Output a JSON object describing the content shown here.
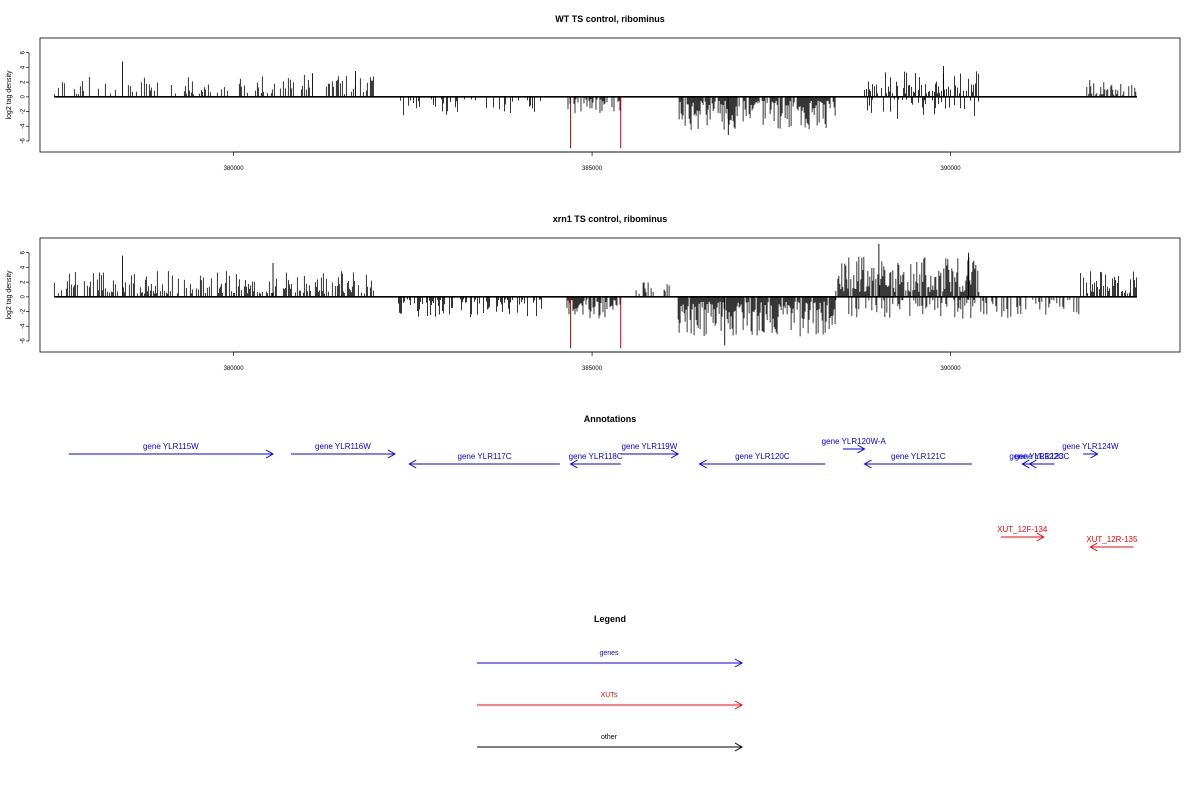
{
  "colors": {
    "gene": "#0000ff",
    "xut": "#ff0000",
    "other": "#000000",
    "signal": "#000000",
    "highlight": "#cc0000"
  },
  "chart_data": [
    {
      "type": "bar",
      "title": "WT TS control, ribominus",
      "xlabel": "",
      "ylabel": "log2 tag density",
      "xlim": [
        377300,
        393200
      ],
      "ylim": [
        -7.5,
        8
      ],
      "yticks": [
        -6,
        -4,
        -2,
        0,
        2,
        4,
        6
      ],
      "xticks": [
        380000,
        385000,
        390000
      ],
      "xtick_labels": [
        "380000",
        "385000",
        "390000"
      ],
      "baseline_range": [
        377500,
        392600
      ],
      "grid": false,
      "highlight_bars": [
        {
          "x": 384700,
          "y": -7
        },
        {
          "x": 385400,
          "y": -7
        }
      ],
      "profile": {
        "blocks": [
          {
            "from": 377500,
            "to": 381950,
            "sign": 1,
            "max": 3.0,
            "density": 0.32
          },
          {
            "from": 382300,
            "to": 384300,
            "sign": -1,
            "max": 2.5,
            "density": 0.3
          },
          {
            "from": 384650,
            "to": 385400,
            "sign": -1,
            "max": 2.4,
            "density": 0.6
          },
          {
            "from": 386200,
            "to": 388400,
            "sign": -1,
            "max": 4.5,
            "density": 0.85
          },
          {
            "from": 388800,
            "to": 390400,
            "sign": 1,
            "max": 3.5,
            "density": 0.45
          },
          {
            "from": 388800,
            "to": 390400,
            "sign": -1,
            "max": 3.0,
            "density": 0.3
          },
          {
            "from": 391900,
            "to": 392600,
            "sign": 1,
            "max": 2.4,
            "density": 0.5
          }
        ],
        "peaks": [
          {
            "x": 378450,
            "y": 4.8
          },
          {
            "x": 381100,
            "y": 3.2
          },
          {
            "x": 381700,
            "y": 3.5
          },
          {
            "x": 389900,
            "y": 4.2
          },
          {
            "x": 386900,
            "y": -5.2
          }
        ]
      }
    },
    {
      "type": "bar",
      "title": "xrn1 TS control, ribominus",
      "xlabel": "",
      "ylabel": "log2 tag density",
      "xlim": [
        377300,
        393200
      ],
      "ylim": [
        -7.5,
        8
      ],
      "yticks": [
        -6,
        -4,
        -2,
        0,
        2,
        4,
        6
      ],
      "xticks": [
        380000,
        385000,
        390000
      ],
      "xtick_labels": [
        "380000",
        "385000",
        "390000"
      ],
      "baseline_range": [
        377500,
        392600
      ],
      "grid": false,
      "highlight_bars": [
        {
          "x": 384700,
          "y": -7
        },
        {
          "x": 385400,
          "y": -7
        }
      ],
      "profile": {
        "blocks": [
          {
            "from": 377500,
            "to": 381950,
            "sign": 1,
            "max": 3.5,
            "density": 0.55
          },
          {
            "from": 382300,
            "to": 384300,
            "sign": -1,
            "max": 2.8,
            "density": 0.45
          },
          {
            "from": 384650,
            "to": 385400,
            "sign": -1,
            "max": 3.0,
            "density": 0.75
          },
          {
            "from": 385600,
            "to": 386100,
            "sign": 1,
            "max": 2.0,
            "density": 0.4
          },
          {
            "from": 386200,
            "to": 388400,
            "sign": -1,
            "max": 5.5,
            "density": 0.95
          },
          {
            "from": 388400,
            "to": 390400,
            "sign": 1,
            "max": 5.5,
            "density": 0.9
          },
          {
            "from": 388400,
            "to": 391800,
            "sign": -1,
            "max": 3.0,
            "density": 0.4
          },
          {
            "from": 391800,
            "to": 392600,
            "sign": 1,
            "max": 3.5,
            "density": 0.7
          }
        ],
        "peaks": [
          {
            "x": 378450,
            "y": 5.6
          },
          {
            "x": 380550,
            "y": 4.6
          },
          {
            "x": 389000,
            "y": 7.2
          },
          {
            "x": 390250,
            "y": 6.0
          },
          {
            "x": 386850,
            "y": -6.6
          }
        ]
      }
    }
  ],
  "annotations": {
    "title": "Annotations",
    "features": [
      {
        "label": "gene YLR115W",
        "type": "gene",
        "start": 377700,
        "end": 380550,
        "strand": "+",
        "row": 0
      },
      {
        "label": "gene YLR116W",
        "type": "gene",
        "start": 380800,
        "end": 382250,
        "strand": "+",
        "row": 0
      },
      {
        "label": "gene YLR117C",
        "type": "gene",
        "start": 382450,
        "end": 384550,
        "strand": "-",
        "row": 1
      },
      {
        "label": "gene YLR118C",
        "type": "gene",
        "start": 384700,
        "end": 385400,
        "strand": "-",
        "row": 1
      },
      {
        "label": "gene YLR119W",
        "type": "gene",
        "start": 385400,
        "end": 386200,
        "strand": "+",
        "row": 0
      },
      {
        "label": "gene YLR120C",
        "type": "gene",
        "start": 386500,
        "end": 388250,
        "strand": "-",
        "row": 1
      },
      {
        "label": "gene YLR120W-A",
        "type": "gene",
        "start": 388500,
        "end": 388800,
        "strand": "+",
        "row": -1
      },
      {
        "label": "gene YLR121C",
        "type": "gene",
        "start": 388800,
        "end": 390300,
        "strand": "-",
        "row": 1
      },
      {
        "label": "gene YLR122C",
        "type": "gene",
        "start": 391000,
        "end": 391400,
        "strand": "-",
        "row": 1
      },
      {
        "label": "gene YLR123C",
        "type": "gene",
        "start": 391100,
        "end": 391450,
        "strand": "-",
        "row": 1
      },
      {
        "label": "gene YLR124W",
        "type": "gene",
        "start": 391850,
        "end": 392050,
        "strand": "+",
        "row": 0
      },
      {
        "label": "XUT_12F-134",
        "type": "xut",
        "start": 390700,
        "end": 391300,
        "strand": "+",
        "row": 2
      },
      {
        "label": "XUT_12R-135",
        "type": "xut",
        "start": 391950,
        "end": 392550,
        "strand": "-",
        "row": 3
      }
    ]
  },
  "legend": {
    "title": "Legend",
    "items": [
      {
        "label": "genes",
        "type": "gene"
      },
      {
        "label": "XUTs",
        "type": "xut"
      },
      {
        "label": "other",
        "type": "other"
      }
    ]
  }
}
